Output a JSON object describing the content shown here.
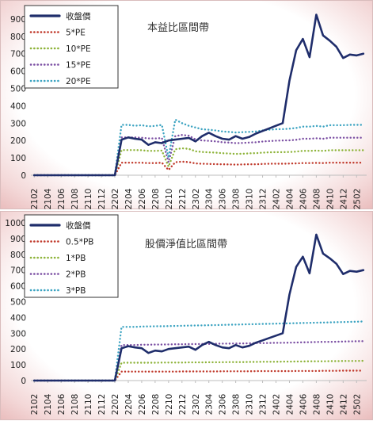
{
  "chart_data": [
    {
      "type": "line",
      "title": "本益比區間帶",
      "x": [
        "2102",
        "2103",
        "2104",
        "2105",
        "2106",
        "2107",
        "2108",
        "2109",
        "2110",
        "2111",
        "2112",
        "2201",
        "2202",
        "2203",
        "2204",
        "2205",
        "2206",
        "2207",
        "2208",
        "2209",
        "2210",
        "2211",
        "2212",
        "2301",
        "2302",
        "2303",
        "2304",
        "2305",
        "2306",
        "2307",
        "2308",
        "2309",
        "2310",
        "2311",
        "2312",
        "2401",
        "2402",
        "2403",
        "2404",
        "2405",
        "2406",
        "2407",
        "2408",
        "2409",
        "2410",
        "2411",
        "2412",
        "2501",
        "2502",
        "2503"
      ],
      "xtick_labels": [
        "2102",
        "2104",
        "2106",
        "2108",
        "2110",
        "2112",
        "2202",
        "2204",
        "2206",
        "2208",
        "2210",
        "2212",
        "2302",
        "2304",
        "2306",
        "2308",
        "2310",
        "2312",
        "2402",
        "2404",
        "2406",
        "2408",
        "2410",
        "2412",
        "2502"
      ],
      "yticks": [
        0,
        100,
        200,
        300,
        400,
        500,
        600,
        700,
        800,
        900
      ],
      "ylim": [
        0,
        950
      ],
      "legend_position": "top-left",
      "series": [
        {
          "name": "收盤價",
          "color": "#1f2d6b",
          "style": "solid",
          "values": [
            0,
            0,
            0,
            0,
            0,
            0,
            0,
            0,
            0,
            0,
            0,
            0,
            0,
            205,
            218,
            210,
            205,
            175,
            190,
            185,
            200,
            205,
            210,
            215,
            195,
            225,
            245,
            225,
            210,
            205,
            225,
            210,
            220,
            240,
            255,
            270,
            285,
            300,
            545,
            720,
            785,
            680,
            925,
            805,
            775,
            740,
            675,
            695,
            690,
            700
          ]
        },
        {
          "name": "5*PE",
          "color": "#c0392b",
          "style": "dotted",
          "values": [
            0,
            0,
            0,
            0,
            0,
            0,
            0,
            0,
            0,
            0,
            0,
            0,
            0,
            72,
            72,
            72,
            72,
            70,
            70,
            72,
            30,
            75,
            78,
            76,
            68,
            66,
            65,
            64,
            63,
            62,
            61,
            62,
            63,
            63,
            65,
            66,
            66,
            66,
            67,
            68,
            70,
            70,
            71,
            70,
            72,
            72,
            72,
            72,
            72,
            72
          ]
        },
        {
          "name": "10*PE",
          "color": "#8db339",
          "style": "dotted",
          "values": [
            0,
            0,
            0,
            0,
            0,
            0,
            0,
            0,
            0,
            0,
            0,
            0,
            0,
            145,
            145,
            145,
            144,
            140,
            140,
            142,
            50,
            150,
            155,
            152,
            138,
            134,
            132,
            130,
            127,
            125,
            123,
            124,
            126,
            127,
            130,
            132,
            133,
            133,
            134,
            136,
            140,
            140,
            142,
            140,
            144,
            144,
            144,
            144,
            144,
            144
          ]
        },
        {
          "name": "15*PE",
          "color": "#7b4fa3",
          "style": "dotted",
          "values": [
            0,
            0,
            0,
            0,
            0,
            0,
            0,
            0,
            0,
            0,
            0,
            0,
            0,
            218,
            218,
            218,
            216,
            212,
            212,
            214,
            75,
            225,
            232,
            228,
            207,
            200,
            198,
            195,
            190,
            188,
            185,
            186,
            188,
            190,
            194,
            197,
            199,
            200,
            201,
            204,
            210,
            210,
            213,
            210,
            216,
            216,
            216,
            216,
            216,
            216
          ]
        },
        {
          "name": "20*PE",
          "color": "#3ba3c1",
          "style": "dotted",
          "values": [
            0,
            0,
            0,
            0,
            0,
            0,
            0,
            0,
            0,
            0,
            0,
            0,
            0,
            290,
            290,
            285,
            288,
            282,
            284,
            290,
            100,
            320,
            300,
            285,
            275,
            265,
            262,
            258,
            252,
            250,
            246,
            248,
            250,
            252,
            258,
            262,
            265,
            266,
            268,
            272,
            280,
            280,
            284,
            280,
            288,
            288,
            288,
            290,
            290,
            290
          ]
        }
      ]
    },
    {
      "type": "line",
      "title": "股價淨值比區間帶",
      "x": [
        "2102",
        "2103",
        "2104",
        "2105",
        "2106",
        "2107",
        "2108",
        "2109",
        "2110",
        "2111",
        "2112",
        "2201",
        "2202",
        "2203",
        "2204",
        "2205",
        "2206",
        "2207",
        "2208",
        "2209",
        "2210",
        "2211",
        "2212",
        "2301",
        "2302",
        "2303",
        "2304",
        "2305",
        "2306",
        "2307",
        "2308",
        "2309",
        "2310",
        "2311",
        "2312",
        "2401",
        "2402",
        "2403",
        "2404",
        "2405",
        "2406",
        "2407",
        "2408",
        "2409",
        "2410",
        "2411",
        "2412",
        "2501",
        "2502",
        "2503"
      ],
      "xtick_labels": [
        "2102",
        "2104",
        "2106",
        "2108",
        "2110",
        "2112",
        "2202",
        "2204",
        "2206",
        "2208",
        "2210",
        "2212",
        "2302",
        "2304",
        "2306",
        "2308",
        "2310",
        "2312",
        "2402",
        "2404",
        "2406",
        "2408",
        "2410",
        "2412",
        "2502"
      ],
      "yticks": [
        0,
        100,
        200,
        300,
        400,
        500,
        600,
        700,
        800,
        900,
        1000
      ],
      "ylim": [
        0,
        1000
      ],
      "legend_position": "top-left",
      "series": [
        {
          "name": "收盤價",
          "color": "#1f2d6b",
          "style": "solid",
          "values": [
            0,
            0,
            0,
            0,
            0,
            0,
            0,
            0,
            0,
            0,
            0,
            0,
            0,
            205,
            218,
            210,
            205,
            175,
            190,
            185,
            200,
            205,
            210,
            215,
            195,
            225,
            245,
            225,
            210,
            205,
            225,
            210,
            220,
            240,
            255,
            270,
            285,
            300,
            545,
            720,
            785,
            680,
            925,
            805,
            775,
            740,
            675,
            695,
            690,
            700
          ]
        },
        {
          "name": "0.5*PB",
          "color": "#c0392b",
          "style": "dotted",
          "values": [
            0,
            0,
            0,
            0,
            0,
            0,
            0,
            0,
            0,
            0,
            0,
            0,
            0,
            57,
            57,
            57,
            57,
            57,
            57,
            57,
            57,
            57,
            58,
            58,
            58,
            58,
            58,
            58,
            59,
            59,
            59,
            59,
            59,
            60,
            60,
            60,
            60,
            60,
            60,
            61,
            61,
            61,
            61,
            62,
            62,
            62,
            63,
            63,
            63,
            63
          ]
        },
        {
          "name": "1*PB",
          "color": "#8db339",
          "style": "dotted",
          "values": [
            0,
            0,
            0,
            0,
            0,
            0,
            0,
            0,
            0,
            0,
            0,
            0,
            0,
            113,
            113,
            113,
            113,
            113,
            113,
            114,
            114,
            114,
            114,
            115,
            115,
            115,
            116,
            116,
            116,
            117,
            117,
            117,
            118,
            118,
            119,
            119,
            119,
            120,
            120,
            121,
            121,
            122,
            122,
            122,
            123,
            123,
            124,
            124,
            124,
            125
          ]
        },
        {
          "name": "2*PB",
          "color": "#7b4fa3",
          "style": "dotted",
          "values": [
            0,
            0,
            0,
            0,
            0,
            0,
            0,
            0,
            0,
            0,
            0,
            0,
            0,
            225,
            225,
            225,
            227,
            227,
            228,
            228,
            229,
            230,
            230,
            231,
            231,
            232,
            232,
            233,
            234,
            234,
            235,
            235,
            236,
            237,
            237,
            238,
            239,
            239,
            240,
            241,
            242,
            243,
            244,
            245,
            245,
            246,
            247,
            248,
            249,
            250
          ]
        },
        {
          "name": "3*PB",
          "color": "#3ba3c1",
          "style": "dotted",
          "values": [
            0,
            0,
            0,
            0,
            0,
            0,
            0,
            0,
            0,
            0,
            0,
            0,
            0,
            340,
            340,
            340,
            342,
            343,
            344,
            344,
            345,
            346,
            347,
            348,
            349,
            350,
            351,
            352,
            353,
            354,
            355,
            356,
            357,
            358,
            359,
            360,
            361,
            362,
            363,
            364,
            365,
            366,
            367,
            368,
            369,
            370,
            371,
            372,
            373,
            375
          ]
        }
      ]
    }
  ]
}
